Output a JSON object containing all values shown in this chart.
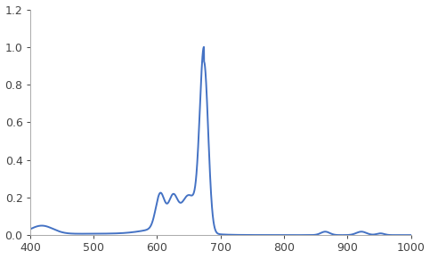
{
  "xlim": [
    400,
    1000
  ],
  "ylim": [
    0,
    1.2
  ],
  "xticks": [
    400,
    500,
    600,
    700,
    800,
    900,
    1000
  ],
  "yticks": [
    0,
    0.2,
    0.4,
    0.6,
    0.8,
    1.0,
    1.2
  ],
  "line_color": "#4472C4",
  "line_width": 1.4,
  "background_color": "#ffffff"
}
